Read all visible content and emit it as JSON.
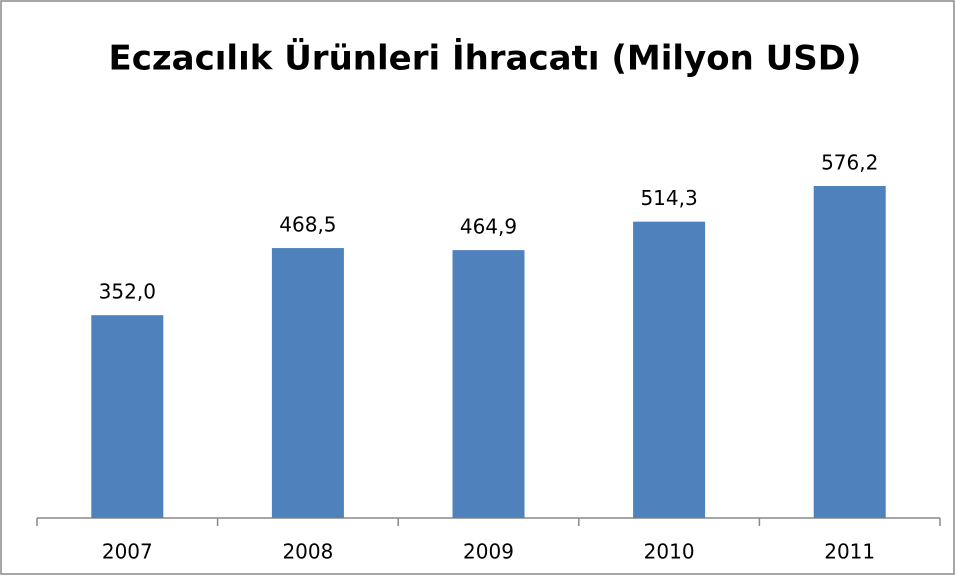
{
  "chart_data": {
    "type": "bar",
    "title": "Eczacılık Ürünleri İhracatı  (Milyon USD)",
    "categories": [
      "2007",
      "2008",
      "2009",
      "2010",
      "2011"
    ],
    "values": [
      352.0,
      468.5,
      464.9,
      514.3,
      576.2
    ],
    "value_labels": [
      "352,0",
      "468,5",
      "464,9",
      "514,3",
      "576,2"
    ],
    "color": "#4f81bd"
  }
}
